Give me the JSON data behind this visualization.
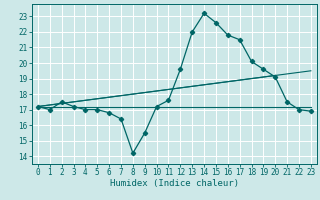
{
  "title": "",
  "xlabel": "Humidex (Indice chaleur)",
  "ylabel": "",
  "bg_color": "#cde8e8",
  "grid_color": "#ffffff",
  "line_color": "#006666",
  "xlim": [
    -0.5,
    23.5
  ],
  "ylim": [
    13.5,
    23.8
  ],
  "yticks": [
    14,
    15,
    16,
    17,
    18,
    19,
    20,
    21,
    22,
    23
  ],
  "xticks": [
    0,
    1,
    2,
    3,
    4,
    5,
    6,
    7,
    8,
    9,
    10,
    11,
    12,
    13,
    14,
    15,
    16,
    17,
    18,
    19,
    20,
    21,
    22,
    23
  ],
  "main_series_x": [
    0,
    1,
    2,
    3,
    4,
    5,
    6,
    7,
    8,
    9,
    10,
    11,
    12,
    13,
    14,
    15,
    16,
    17,
    18,
    19,
    20,
    21,
    22,
    23
  ],
  "main_series_y": [
    17.2,
    17.0,
    17.5,
    17.2,
    17.0,
    17.0,
    16.8,
    16.4,
    14.2,
    15.5,
    17.2,
    17.6,
    19.6,
    22.0,
    23.2,
    22.6,
    21.8,
    21.5,
    20.1,
    19.6,
    19.1,
    17.5,
    17.0,
    16.9
  ],
  "trend1_x": [
    0,
    23
  ],
  "trend1_y": [
    17.2,
    17.2
  ],
  "trend2_x": [
    0,
    23
  ],
  "trend2_y": [
    17.2,
    19.5
  ],
  "trend3_x": [
    0,
    20
  ],
  "trend3_y": [
    17.2,
    19.2
  ]
}
